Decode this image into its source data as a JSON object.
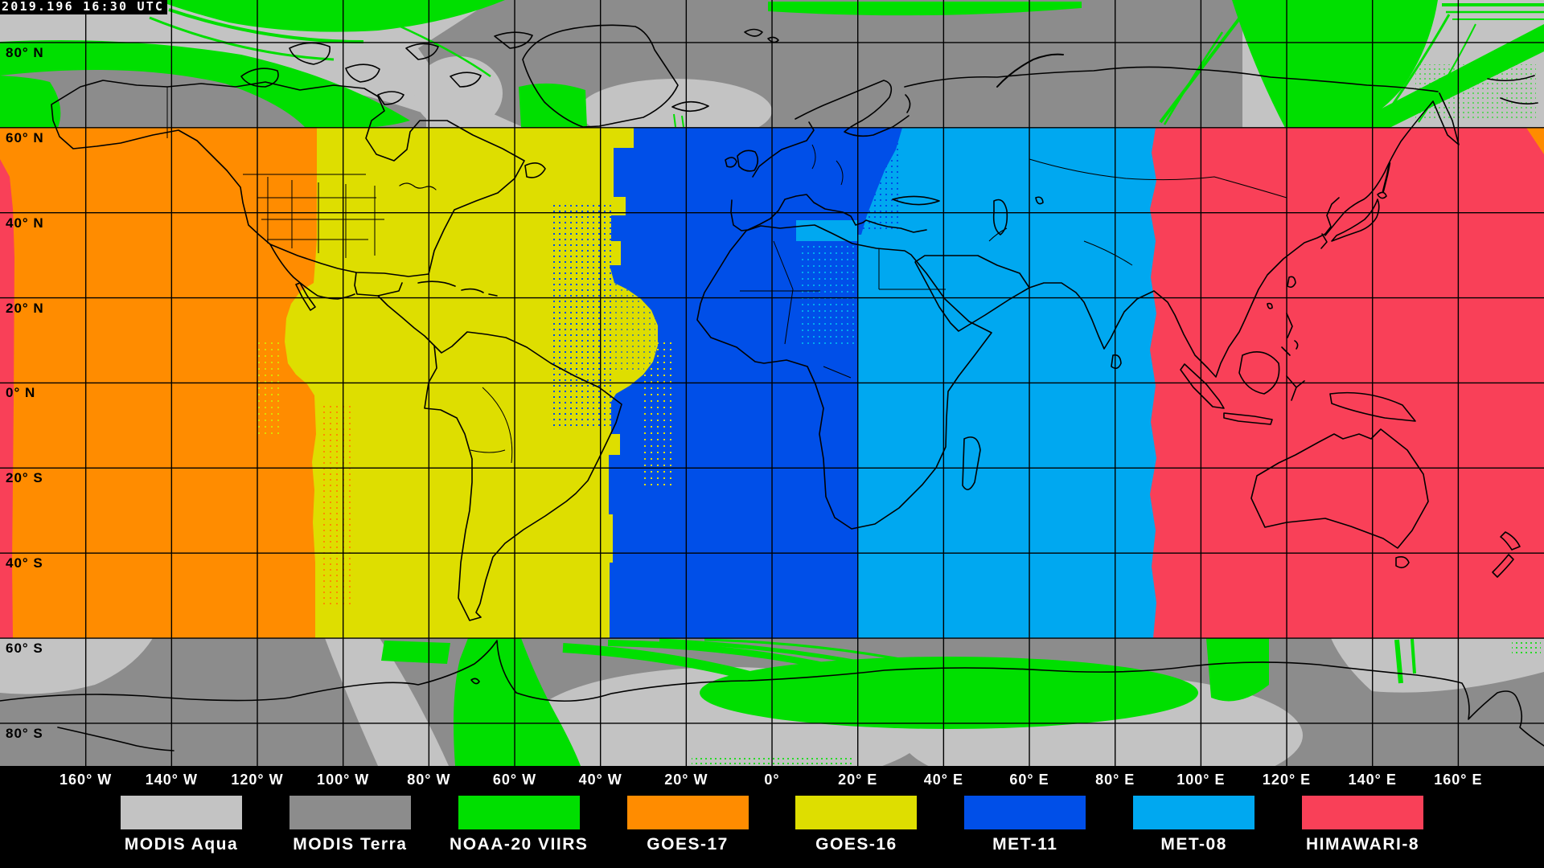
{
  "header": {
    "timestamp": "2019.196 16:30 UTC"
  },
  "colors": {
    "background": "#000000",
    "grid_line": "#000000",
    "coastline": "#000000",
    "label_dark": "#000000",
    "label_light": "#FFFFFF",
    "modis_aqua": "#C3C3C3",
    "modis_terra": "#8C8C8C",
    "noaa20_viirs": "#00DF00",
    "goes17": "#FF8C00",
    "goes16": "#DEDE00",
    "met11": "#004FE8",
    "met08": "#00A8F0",
    "himawari8": "#F94058"
  },
  "legend": {
    "items": [
      {
        "label": "MODIS Aqua",
        "color": "modis_aqua"
      },
      {
        "label": "MODIS Terra",
        "color": "modis_terra"
      },
      {
        "label": "NOAA-20 VIIRS",
        "color": "noaa20_viirs"
      },
      {
        "label": "GOES-17",
        "color": "goes17"
      },
      {
        "label": "GOES-16",
        "color": "goes16"
      },
      {
        "label": "MET-11",
        "color": "met11"
      },
      {
        "label": "MET-08",
        "color": "met08"
      },
      {
        "label": "HIMAWARI-8",
        "color": "himawari8"
      }
    ]
  },
  "axes": {
    "longitude_labels": [
      "160° W",
      "140° W",
      "120° W",
      "100° W",
      "80° W",
      "60° W",
      "40° W",
      "20° W",
      "0°",
      "20° E",
      "40° E",
      "60° E",
      "80° E",
      "100° E",
      "120° E",
      "140° E",
      "160° E"
    ],
    "latitude_labels": [
      "80° N",
      "60° N",
      "40° N",
      "20° N",
      "0° N",
      "20° S",
      "40° S",
      "60° S",
      "80° S"
    ]
  }
}
